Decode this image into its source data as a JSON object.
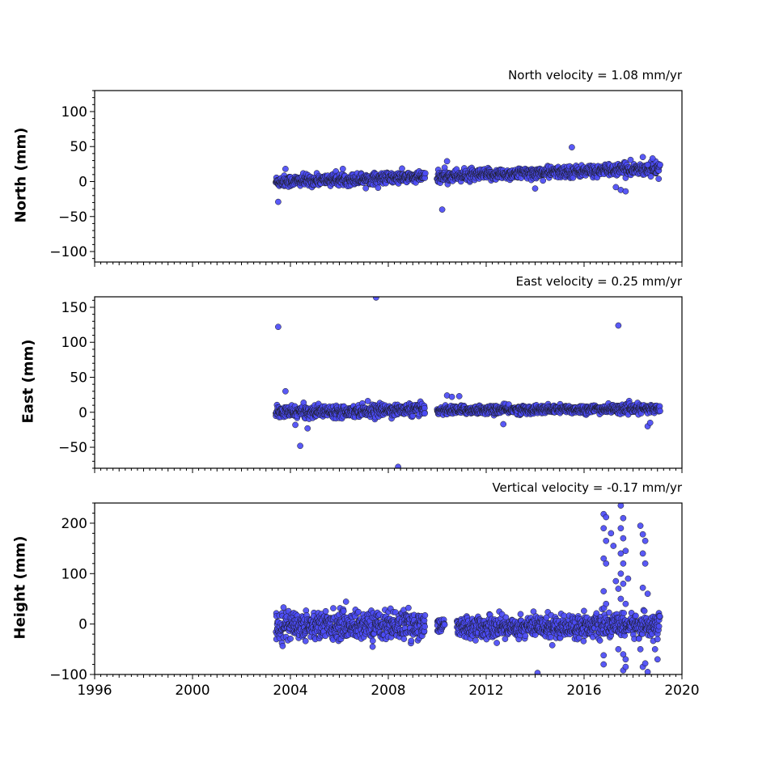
{
  "chart_data": [
    {
      "type": "scatter",
      "title": "North velocity = 1.08 mm/yr",
      "ylabel": "North (mm)",
      "xlim": [
        1996,
        2020
      ],
      "ylim": [
        -115,
        130
      ],
      "yticks": [
        100,
        50,
        0,
        -50,
        -100
      ],
      "xticks": [
        1996,
        2000,
        2004,
        2008,
        2012,
        2016,
        2020
      ],
      "xticklabels_visible": false,
      "marker_color": "#4b4bf5",
      "edge_color": "#1a1a1a",
      "segments": [
        {
          "start": 2003.4,
          "end": 2009.5,
          "y_start": 0,
          "y_end": 6.5,
          "spread": 4
        },
        {
          "start": 2010.0,
          "end": 2019.1,
          "y_start": 7,
          "y_end": 19,
          "spread": 4
        }
      ],
      "outliers": [
        [
          2003.5,
          -29
        ],
        [
          2003.8,
          18
        ],
        [
          2010.2,
          -40
        ],
        [
          2010.4,
          29
        ],
        [
          2010.3,
          20
        ],
        [
          2014.0,
          -10
        ],
        [
          2015.5,
          49
        ],
        [
          2017.3,
          -8
        ],
        [
          2017.5,
          -12
        ],
        [
          2017.7,
          -14
        ],
        [
          2017.9,
          31
        ],
        [
          2018.4,
          35
        ],
        [
          2018.8,
          33
        ],
        [
          2018.6,
          24
        ]
      ]
    },
    {
      "type": "scatter",
      "title": "East velocity = 0.25 mm/yr",
      "ylabel": "East (mm)",
      "xlim": [
        1996,
        2020
      ],
      "ylim": [
        -80,
        165
      ],
      "yticks": [
        150,
        100,
        50,
        0,
        -50
      ],
      "xticks": [
        1996,
        2000,
        2004,
        2008,
        2012,
        2016,
        2020
      ],
      "xticklabels_visible": false,
      "marker_color": "#4b4bf5",
      "edge_color": "#1a1a1a",
      "segments": [
        {
          "start": 2003.4,
          "end": 2009.5,
          "y_start": 0,
          "y_end": 4,
          "spread": 4
        },
        {
          "start": 2010.0,
          "end": 2019.1,
          "y_start": 3,
          "y_end": 5,
          "spread": 3
        }
      ],
      "outliers": [
        [
          2003.5,
          122
        ],
        [
          2003.8,
          30
        ],
        [
          2004.2,
          -18
        ],
        [
          2004.4,
          -48
        ],
        [
          2004.7,
          -23
        ],
        [
          2007.5,
          164
        ],
        [
          2008.4,
          -78
        ],
        [
          2010.4,
          24
        ],
        [
          2010.6,
          22
        ],
        [
          2010.9,
          23
        ],
        [
          2012.7,
          -17
        ],
        [
          2017.4,
          124
        ],
        [
          2018.6,
          -20
        ],
        [
          2018.7,
          -15
        ]
      ]
    },
    {
      "type": "scatter",
      "title": "Vertical velocity = -0.17 mm/yr",
      "ylabel": "Height (mm)",
      "xlim": [
        1996,
        2020
      ],
      "ylim": [
        -100,
        240
      ],
      "yticks": [
        200,
        100,
        0,
        -100
      ],
      "xticks": [
        1996,
        2000,
        2004,
        2008,
        2012,
        2016,
        2020
      ],
      "xticklabels": [
        "1996",
        "2000",
        "2004",
        "2008",
        "2012",
        "2016",
        "2020"
      ],
      "xticklabels_visible": true,
      "marker_color": "#4b4bf5",
      "edge_color": "#1a1a1a",
      "segments": [
        {
          "start": 2003.4,
          "end": 2009.5,
          "y_start": -2,
          "y_end": -2,
          "spread": 14
        },
        {
          "start": 2010.0,
          "end": 2010.3,
          "y_start": -2,
          "y_end": -2,
          "spread": 6
        },
        {
          "start": 2010.8,
          "end": 2019.1,
          "y_start": -7,
          "y_end": -2,
          "spread": 11
        }
      ],
      "outliers": [
        [
          2014.1,
          -97
        ],
        [
          2014.7,
          -42
        ],
        [
          2016.8,
          218
        ],
        [
          2016.9,
          212
        ],
        [
          2016.8,
          190
        ],
        [
          2016.9,
          165
        ],
        [
          2016.8,
          130
        ],
        [
          2016.9,
          120
        ],
        [
          2016.8,
          65
        ],
        [
          2016.9,
          40
        ],
        [
          2016.8,
          -62
        ],
        [
          2016.8,
          -80
        ],
        [
          2017.1,
          180
        ],
        [
          2017.2,
          155
        ],
        [
          2017.3,
          85
        ],
        [
          2017.4,
          70
        ],
        [
          2017.5,
          235
        ],
        [
          2017.6,
          210
        ],
        [
          2017.5,
          190
        ],
        [
          2017.6,
          170
        ],
        [
          2017.5,
          140
        ],
        [
          2017.7,
          145
        ],
        [
          2017.6,
          120
        ],
        [
          2017.5,
          100
        ],
        [
          2017.6,
          80
        ],
        [
          2017.5,
          50
        ],
        [
          2017.7,
          40
        ],
        [
          2017.8,
          90
        ],
        [
          2017.6,
          -60
        ],
        [
          2017.7,
          -70
        ],
        [
          2017.6,
          -92
        ],
        [
          2017.7,
          -85
        ],
        [
          2017.4,
          -50
        ],
        [
          2018.3,
          195
        ],
        [
          2018.4,
          178
        ],
        [
          2018.5,
          165
        ],
        [
          2018.4,
          140
        ],
        [
          2018.5,
          120
        ],
        [
          2018.4,
          72
        ],
        [
          2018.6,
          60
        ],
        [
          2018.3,
          -50
        ],
        [
          2018.4,
          -85
        ],
        [
          2018.6,
          -95
        ],
        [
          2018.5,
          -78
        ],
        [
          2018.9,
          -50
        ],
        [
          2019.0,
          -70
        ],
        [
          2019.0,
          -30
        ]
      ]
    }
  ]
}
